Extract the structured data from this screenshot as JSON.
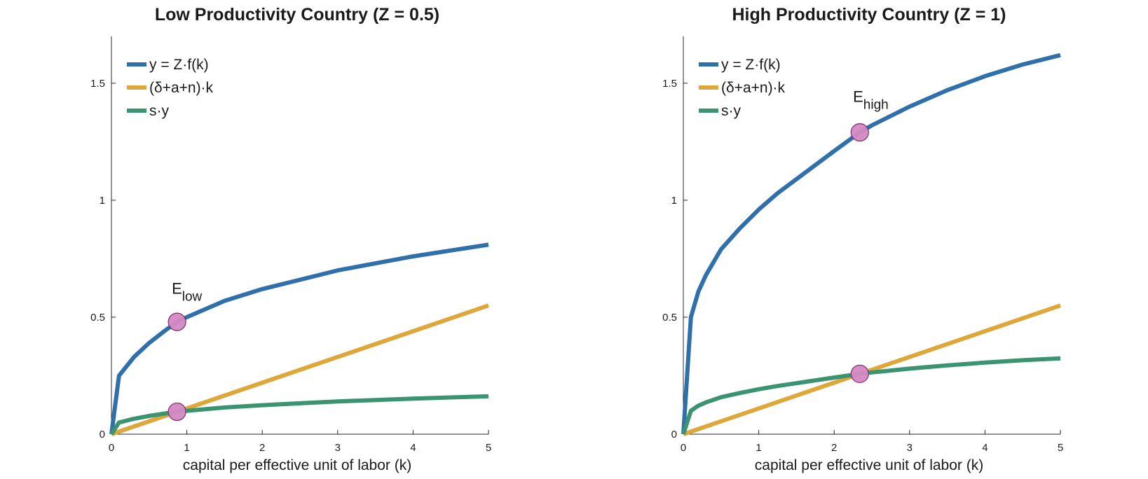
{
  "chart_data": [
    {
      "type": "line",
      "title": "Low Productivity Country (Z = 0.5)",
      "xlabel": "capital per effective unit of labor (k)",
      "ylabel": "",
      "xlim": [
        0,
        5
      ],
      "ylim": [
        0,
        1.7
      ],
      "xticks": [
        "0",
        "1",
        "2",
        "3",
        "4",
        "5"
      ],
      "yticks": [
        "0",
        "0.5",
        "1",
        "1.5"
      ],
      "grid": false,
      "legend_position": "top-left",
      "series": [
        {
          "name": "y = Z·f(k)",
          "color": "#2f6faa",
          "x": [
            0,
            0.1,
            0.2,
            0.3,
            0.5,
            0.7,
            0.87,
            1,
            1.5,
            2,
            2.5,
            3,
            3.5,
            4,
            4.5,
            5
          ],
          "y": [
            0,
            0.25,
            0.29,
            0.33,
            0.39,
            0.44,
            0.48,
            0.5,
            0.57,
            0.62,
            0.66,
            0.7,
            0.73,
            0.76,
            0.785,
            0.81
          ]
        },
        {
          "name": "(δ+a+n)·k",
          "color": "#dea73a",
          "x": [
            0,
            5
          ],
          "y": [
            0,
            0.55
          ]
        },
        {
          "name": "s·y",
          "color": "#3b9471",
          "x": [
            0,
            0.1,
            0.2,
            0.3,
            0.5,
            0.7,
            0.87,
            1,
            1.5,
            2,
            2.5,
            3,
            3.5,
            4,
            4.5,
            5
          ],
          "y": [
            0,
            0.05,
            0.058,
            0.066,
            0.078,
            0.088,
            0.096,
            0.1,
            0.114,
            0.124,
            0.132,
            0.14,
            0.146,
            0.152,
            0.157,
            0.162
          ]
        }
      ],
      "markers": [
        {
          "x": 0.87,
          "y": 0.48
        },
        {
          "x": 0.87,
          "y": 0.096
        }
      ],
      "annotations": [
        {
          "text": "E",
          "subscript": "low",
          "x": 0.8,
          "y": 0.6
        }
      ]
    },
    {
      "type": "line",
      "title": "High Productivity Country (Z = 1)",
      "xlabel": "capital per effective unit of labor (k)",
      "ylabel": "",
      "xlim": [
        0,
        5
      ],
      "ylim": [
        0,
        1.7
      ],
      "xticks": [
        "0",
        "1",
        "2",
        "3",
        "4",
        "5"
      ],
      "yticks": [
        "0",
        "0.5",
        "1",
        "1.5"
      ],
      "grid": false,
      "legend_position": "top-left",
      "series": [
        {
          "name": "y = Z·f(k)",
          "color": "#2f6faa",
          "x": [
            0,
            0.1,
            0.2,
            0.3,
            0.5,
            0.75,
            1,
            1.25,
            1.5,
            2,
            2.34,
            2.5,
            3,
            3.5,
            4,
            4.5,
            5
          ],
          "y": [
            0,
            0.5,
            0.61,
            0.68,
            0.79,
            0.88,
            0.96,
            1.03,
            1.09,
            1.21,
            1.29,
            1.32,
            1.4,
            1.47,
            1.53,
            1.58,
            1.62
          ]
        },
        {
          "name": "(δ+a+n)·k",
          "color": "#dea73a",
          "x": [
            0,
            5
          ],
          "y": [
            0,
            0.55
          ]
        },
        {
          "name": "s·y",
          "color": "#3b9471",
          "x": [
            0,
            0.1,
            0.2,
            0.3,
            0.5,
            0.75,
            1,
            1.25,
            1.5,
            2,
            2.34,
            2.5,
            3,
            3.5,
            4,
            4.5,
            5
          ],
          "y": [
            0,
            0.1,
            0.122,
            0.136,
            0.158,
            0.176,
            0.192,
            0.206,
            0.218,
            0.242,
            0.258,
            0.264,
            0.28,
            0.294,
            0.306,
            0.316,
            0.324
          ]
        }
      ],
      "markers": [
        {
          "x": 2.34,
          "y": 1.29
        },
        {
          "x": 2.34,
          "y": 0.258
        }
      ],
      "annotations": [
        {
          "text": "E",
          "subscript": "high",
          "x": 2.25,
          "y": 1.42
        }
      ]
    }
  ]
}
